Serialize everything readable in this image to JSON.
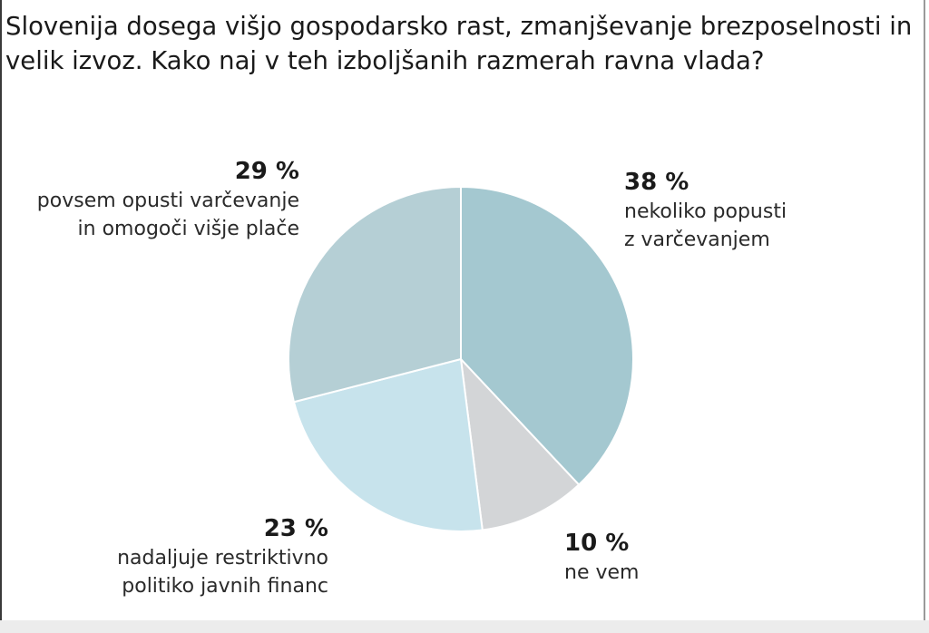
{
  "title": "Slovenija dosega višjo gospodarsko rast, zmanjševanje brezposelnosti in velik izvoz. Kako naj v teh izboljšanih razmerah ravna vlada?",
  "chart_data": {
    "type": "pie",
    "title": "Slovenija dosega višjo gospodarsko rast, zmanjševanje brezposelnosti in velik izvoz. Kako naj v teh izboljšanih razmerah ravna vlada?",
    "slices": [
      {
        "pct_label": "38 %",
        "value": 38,
        "label_line1": "nekoliko popusti",
        "label_line2": "z varčevanjem",
        "color": "#a4c8d0"
      },
      {
        "pct_label": "10 %",
        "value": 10,
        "label_line1": "ne vem",
        "label_line2": "",
        "color": "#d3d5d7"
      },
      {
        "pct_label": "23 %",
        "value": 23,
        "label_line1": "nadaljuje restriktivno",
        "label_line2": "politiko javnih financ",
        "color": "#c7e3ec"
      },
      {
        "pct_label": "29 %",
        "value": 29,
        "label_line1": "povsem opusti varčevanje",
        "label_line2": "in omogoči višje plače",
        "color": "#b5cfd5"
      }
    ],
    "start_angle": "12 o'clock",
    "direction": "clockwise",
    "legend": "none"
  }
}
